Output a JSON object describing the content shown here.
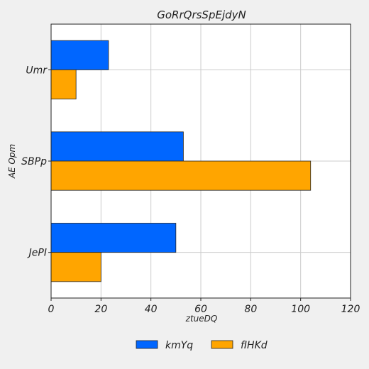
{
  "chart_data": {
    "type": "bar",
    "orientation": "horizontal",
    "title": "GoRrQrsSpEjdyN",
    "xlabel": "ztueDQ",
    "ylabel": "AE  Opm",
    "categories": [
      "Umr",
      "SBPp",
      "JePI"
    ],
    "series": [
      {
        "name": "kmYq",
        "color": "#0066ff",
        "values": [
          23,
          53,
          50
        ]
      },
      {
        "name": "fIHKd",
        "color": "#ffa500",
        "values": [
          10,
          104,
          20
        ]
      }
    ],
    "xlim": [
      0,
      120
    ],
    "xticks": [
      0,
      20,
      40,
      60,
      80,
      100,
      120
    ],
    "xtick_labels": [
      "0",
      "20",
      "40",
      "60",
      "80",
      "100",
      "120"
    ],
    "grid": true,
    "legend_position": "bottom"
  }
}
